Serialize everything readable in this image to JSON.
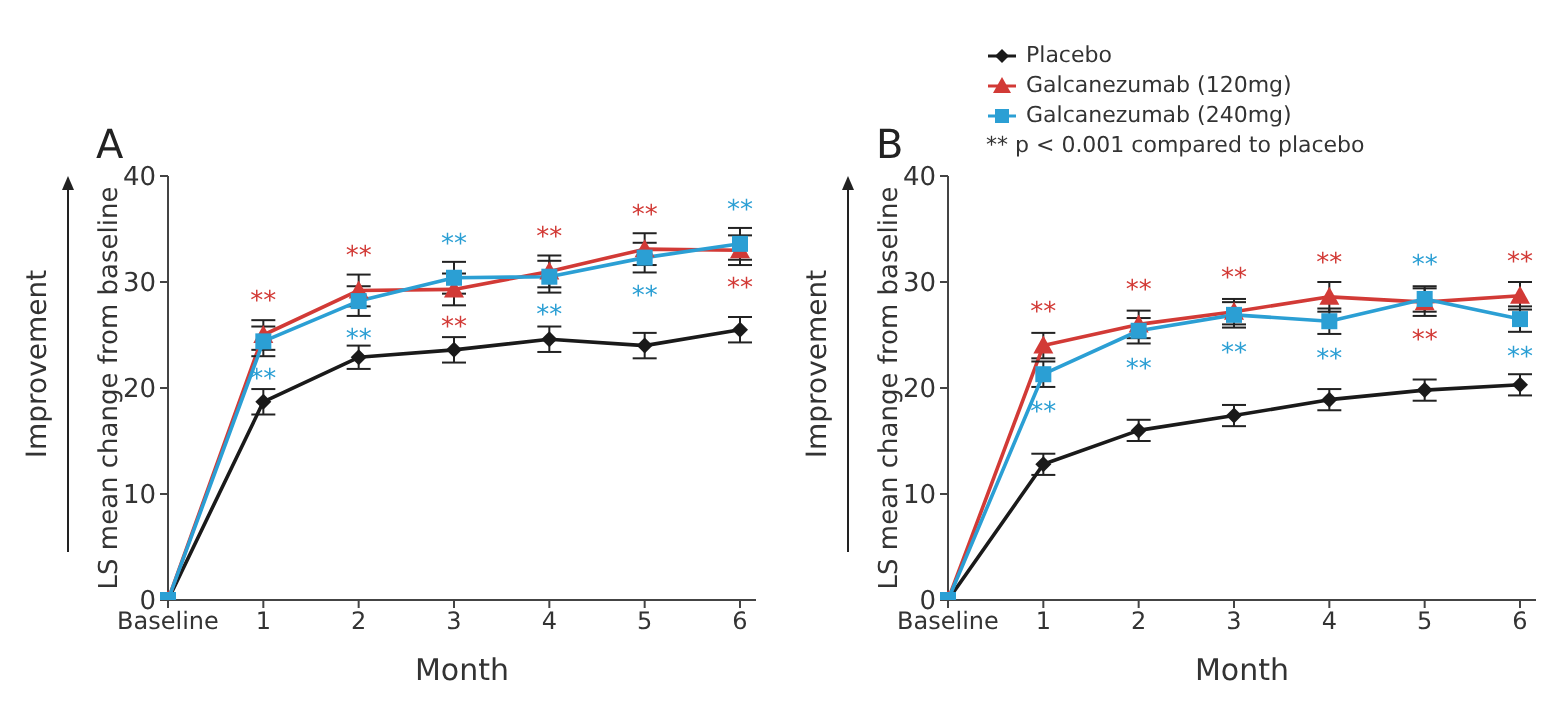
{
  "chart_data": [
    {
      "type": "line",
      "title": "A",
      "xlabel": "Month",
      "ylabel": "LS mean change from baseline",
      "annotations": [
        "Improvement"
      ],
      "categories": [
        "Baseline",
        "1",
        "2",
        "3",
        "4",
        "5",
        "6"
      ],
      "ylim": [
        0,
        40
      ],
      "yticks": [
        0,
        10,
        20,
        30,
        40
      ],
      "grid": false,
      "legend": false,
      "line_style": "solid",
      "series": [
        {
          "color": "#1a1a1a",
          "marker": "diamond",
          "values": [
            0,
            18.7,
            22.9,
            23.6,
            24.6,
            24.0,
            25.5
          ],
          "errors": [
            null,
            1.2,
            1.1,
            1.2,
            1.2,
            1.2,
            1.2
          ]
        },
        {
          "color": "#d23a36",
          "marker": "triangle",
          "values": [
            0,
            25.0,
            29.2,
            29.3,
            31.0,
            33.1,
            33.0
          ],
          "errors": [
            null,
            1.4,
            1.5,
            1.5,
            1.5,
            1.5,
            1.4
          ],
          "value_labels": [
            null,
            "**",
            "**",
            "**",
            "**",
            "**",
            "**"
          ]
        },
        {
          "color": "#2b9fd4",
          "marker": "square",
          "values": [
            0,
            24.4,
            28.2,
            30.4,
            30.5,
            32.3,
            33.6
          ],
          "errors": [
            null,
            1.4,
            1.4,
            1.5,
            1.5,
            1.4,
            1.5
          ],
          "value_labels": [
            null,
            "**",
            "**",
            "**",
            "**",
            "**",
            "**"
          ]
        }
      ]
    },
    {
      "type": "line",
      "title": "B",
      "xlabel": "Month",
      "ylabel": "LS mean change from baseline",
      "annotations": [
        "Improvement",
        "** p < 0.001 compared to placebo"
      ],
      "categories": [
        "Baseline",
        "1",
        "2",
        "3",
        "4",
        "5",
        "6"
      ],
      "ylim": [
        0,
        40
      ],
      "yticks": [
        0,
        10,
        20,
        30,
        40
      ],
      "grid": false,
      "legend": "top",
      "line_style": "solid",
      "series": [
        {
          "name": "Placebo",
          "color": "#1a1a1a",
          "marker": "diamond",
          "values": [
            0,
            12.8,
            16.0,
            17.4,
            18.9,
            19.8,
            20.3
          ],
          "errors": [
            null,
            1.0,
            1.0,
            1.0,
            1.0,
            1.0,
            1.0
          ]
        },
        {
          "name": "Galcanezumab (120mg)",
          "color": "#d23a36",
          "marker": "triangle",
          "values": [
            0,
            24.0,
            26.0,
            27.2,
            28.6,
            28.1,
            28.7
          ],
          "errors": [
            null,
            1.2,
            1.3,
            1.2,
            1.4,
            1.3,
            1.3
          ],
          "value_labels": [
            null,
            "**",
            "**",
            "**",
            "**",
            "**",
            "**"
          ]
        },
        {
          "name": "Galcanezumab (240mg)",
          "color": "#2b9fd4",
          "marker": "square",
          "values": [
            0,
            21.3,
            25.4,
            26.9,
            26.3,
            28.4,
            26.5
          ],
          "errors": [
            null,
            1.2,
            1.2,
            1.2,
            1.2,
            1.2,
            1.2
          ],
          "value_labels": [
            null,
            "**",
            "**",
            "**",
            "**",
            "**",
            "**"
          ]
        }
      ]
    }
  ]
}
